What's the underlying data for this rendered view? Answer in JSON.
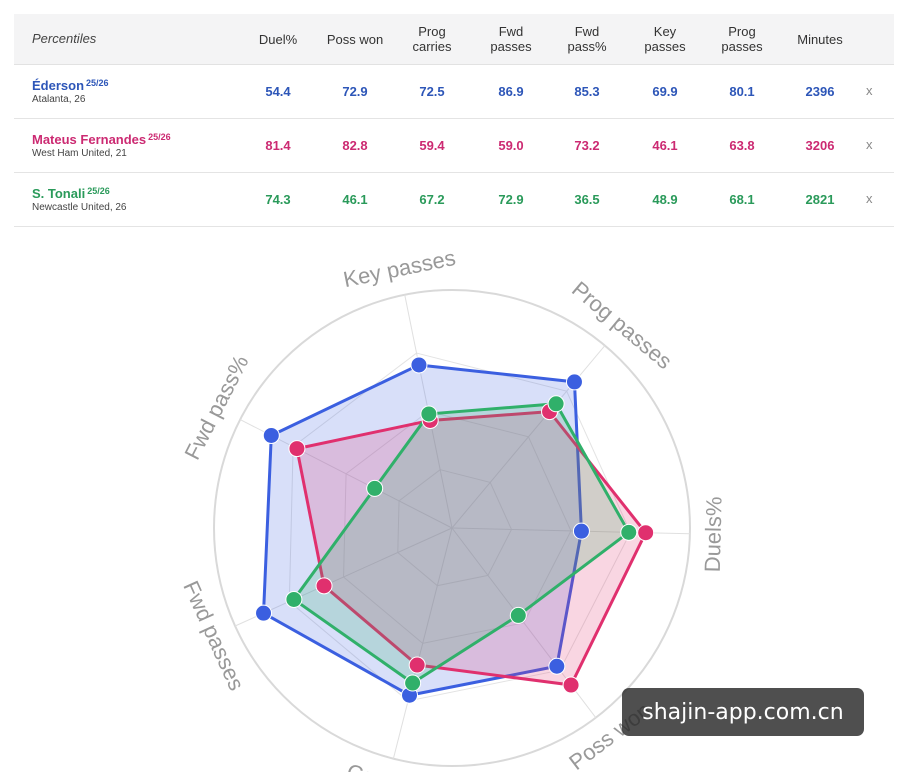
{
  "table": {
    "title": "Percentiles",
    "columns": [
      "Duel%",
      "Poss won",
      "Prog\ncarries",
      "Fwd\npasses",
      "Fwd\npass%",
      "Key\npasses",
      "Prog\npasses",
      "Minutes"
    ],
    "remove_label": "x",
    "players": [
      {
        "name": "Éderson",
        "season": "25/26",
        "team": "Atalanta, 26",
        "color": "#2d56b8",
        "values": [
          "54.4",
          "72.9",
          "72.5",
          "86.9",
          "85.3",
          "69.9",
          "80.1",
          "2396"
        ]
      },
      {
        "name": "Mateus Fernandes",
        "season": "25/26",
        "team": "West Ham United, 21",
        "color": "#cc2a72",
        "values": [
          "81.4",
          "82.8",
          "59.4",
          "59.0",
          "73.2",
          "46.1",
          "63.8",
          "3206"
        ]
      },
      {
        "name": "S. Tonali",
        "season": "25/26",
        "team": "Newcastle United, 26",
        "color": "#2a9a5a",
        "values": [
          "74.3",
          "46.1",
          "67.2",
          "72.9",
          "36.5",
          "48.9",
          "68.1",
          "2821"
        ]
      }
    ]
  },
  "chart_data": {
    "type": "radar",
    "axes": [
      "Key passes",
      "Prog passes",
      "Duels%",
      "Poss won",
      "Carrying",
      "Fwd passes",
      "Fwd pass%"
    ],
    "range": [
      0,
      100
    ],
    "series": [
      {
        "name": "Éderson",
        "color": "#3b5fe0",
        "values": [
          69.9,
          80.1,
          54.4,
          72.9,
          72.5,
          86.9,
          85.3
        ]
      },
      {
        "name": "Mateus Fernandes",
        "color": "#e0306e",
        "values": [
          46.1,
          63.8,
          81.4,
          82.8,
          59.4,
          59.0,
          73.2
        ]
      },
      {
        "name": "S. Tonali",
        "color": "#30b06a",
        "values": [
          48.9,
          68.1,
          74.3,
          46.1,
          67.2,
          72.9,
          36.5
        ]
      }
    ]
  },
  "watermark": "shajin-app.com.cn"
}
